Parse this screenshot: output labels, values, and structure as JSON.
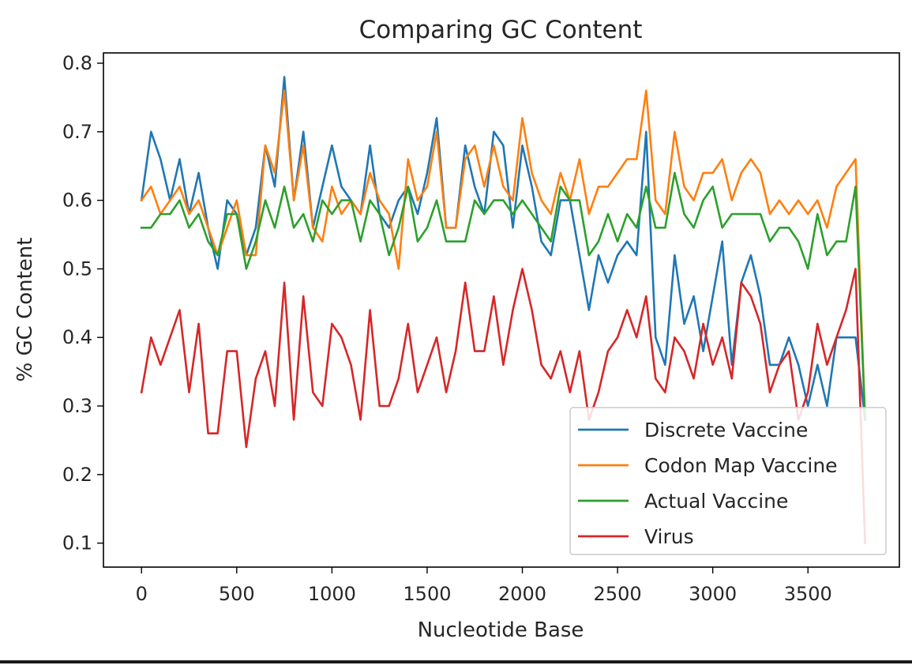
{
  "chart_data": {
    "type": "line",
    "title": "Comparing GC Content",
    "xlabel": "Nucleotide Base",
    "ylabel": "% GC Content",
    "xlim": [
      -200,
      3980
    ],
    "ylim": [
      0.065,
      0.815
    ],
    "xticks": [
      0,
      500,
      1000,
      1500,
      2000,
      2500,
      3000,
      3500
    ],
    "yticks": [
      0.1,
      0.2,
      0.3,
      0.4,
      0.5,
      0.6,
      0.7,
      0.8
    ],
    "grid": false,
    "legend_position": "lower-right",
    "x": [
      0,
      50,
      100,
      150,
      200,
      250,
      300,
      350,
      400,
      450,
      500,
      550,
      600,
      650,
      700,
      750,
      800,
      850,
      900,
      950,
      1000,
      1050,
      1100,
      1150,
      1200,
      1250,
      1300,
      1350,
      1400,
      1450,
      1500,
      1550,
      1600,
      1650,
      1700,
      1750,
      1800,
      1850,
      1900,
      1950,
      2000,
      2050,
      2100,
      2150,
      2200,
      2250,
      2300,
      2350,
      2400,
      2450,
      2500,
      2550,
      2600,
      2650,
      2700,
      2750,
      2800,
      2850,
      2900,
      2950,
      3000,
      3050,
      3100,
      3150,
      3200,
      3250,
      3300,
      3350,
      3400,
      3450,
      3500,
      3550,
      3600,
      3650,
      3700,
      3750,
      3800
    ],
    "series": [
      {
        "name": "Discrete Vaccine",
        "color": "#1f77b4",
        "values": [
          0.6,
          0.7,
          0.66,
          0.6,
          0.66,
          0.58,
          0.64,
          0.56,
          0.5,
          0.6,
          0.58,
          0.52,
          0.56,
          0.68,
          0.62,
          0.78,
          0.6,
          0.7,
          0.56,
          0.62,
          0.68,
          0.62,
          0.6,
          0.58,
          0.68,
          0.58,
          0.56,
          0.6,
          0.62,
          0.58,
          0.64,
          0.72,
          0.56,
          0.56,
          0.68,
          0.62,
          0.58,
          0.7,
          0.68,
          0.56,
          0.68,
          0.62,
          0.54,
          0.52,
          0.6,
          0.6,
          0.52,
          0.44,
          0.52,
          0.48,
          0.52,
          0.54,
          0.52,
          0.7,
          0.4,
          0.36,
          0.52,
          0.42,
          0.46,
          0.38,
          0.46,
          0.54,
          0.36,
          0.48,
          0.52,
          0.46,
          0.36,
          0.36,
          0.4,
          0.36,
          0.3,
          0.36,
          0.3,
          0.4,
          0.4,
          0.4,
          0.28
        ]
      },
      {
        "name": "Codon Map Vaccine",
        "color": "#ff7f0e",
        "values": [
          0.6,
          0.62,
          0.58,
          0.6,
          0.62,
          0.58,
          0.6,
          0.56,
          0.52,
          0.56,
          0.6,
          0.52,
          0.52,
          0.68,
          0.64,
          0.76,
          0.6,
          0.68,
          0.56,
          0.54,
          0.62,
          0.58,
          0.6,
          0.58,
          0.64,
          0.6,
          0.58,
          0.5,
          0.66,
          0.6,
          0.62,
          0.7,
          0.56,
          0.56,
          0.66,
          0.68,
          0.62,
          0.68,
          0.62,
          0.6,
          0.72,
          0.64,
          0.6,
          0.58,
          0.64,
          0.6,
          0.66,
          0.58,
          0.62,
          0.62,
          0.64,
          0.66,
          0.66,
          0.76,
          0.6,
          0.58,
          0.7,
          0.62,
          0.6,
          0.64,
          0.64,
          0.66,
          0.6,
          0.64,
          0.66,
          0.64,
          0.58,
          0.6,
          0.58,
          0.6,
          0.58,
          0.6,
          0.56,
          0.62,
          0.64,
          0.66,
          0.28
        ]
      },
      {
        "name": "Actual Vaccine",
        "color": "#2ca02c",
        "values": [
          0.56,
          0.56,
          0.58,
          0.58,
          0.6,
          0.56,
          0.58,
          0.54,
          0.52,
          0.58,
          0.58,
          0.5,
          0.54,
          0.6,
          0.56,
          0.62,
          0.56,
          0.58,
          0.54,
          0.6,
          0.58,
          0.6,
          0.6,
          0.54,
          0.6,
          0.58,
          0.52,
          0.56,
          0.62,
          0.54,
          0.56,
          0.6,
          0.54,
          0.54,
          0.54,
          0.6,
          0.58,
          0.6,
          0.6,
          0.58,
          0.6,
          0.58,
          0.56,
          0.54,
          0.62,
          0.6,
          0.6,
          0.52,
          0.54,
          0.58,
          0.54,
          0.58,
          0.56,
          0.62,
          0.56,
          0.56,
          0.64,
          0.58,
          0.56,
          0.6,
          0.62,
          0.56,
          0.58,
          0.58,
          0.58,
          0.58,
          0.54,
          0.56,
          0.56,
          0.54,
          0.5,
          0.58,
          0.52,
          0.54,
          0.54,
          0.62,
          0.28
        ]
      },
      {
        "name": "Virus",
        "color": "#d62728",
        "values": [
          0.32,
          0.4,
          0.36,
          0.4,
          0.44,
          0.32,
          0.42,
          0.26,
          0.26,
          0.38,
          0.38,
          0.24,
          0.34,
          0.38,
          0.3,
          0.48,
          0.28,
          0.46,
          0.32,
          0.3,
          0.42,
          0.4,
          0.36,
          0.28,
          0.44,
          0.3,
          0.3,
          0.34,
          0.42,
          0.32,
          0.36,
          0.4,
          0.32,
          0.38,
          0.48,
          0.38,
          0.38,
          0.46,
          0.36,
          0.44,
          0.5,
          0.44,
          0.36,
          0.34,
          0.38,
          0.32,
          0.38,
          0.28,
          0.32,
          0.38,
          0.4,
          0.44,
          0.4,
          0.46,
          0.34,
          0.32,
          0.4,
          0.38,
          0.34,
          0.42,
          0.36,
          0.4,
          0.34,
          0.48,
          0.46,
          0.42,
          0.32,
          0.36,
          0.38,
          0.28,
          0.32,
          0.42,
          0.36,
          0.4,
          0.44,
          0.5,
          0.1
        ]
      }
    ]
  }
}
